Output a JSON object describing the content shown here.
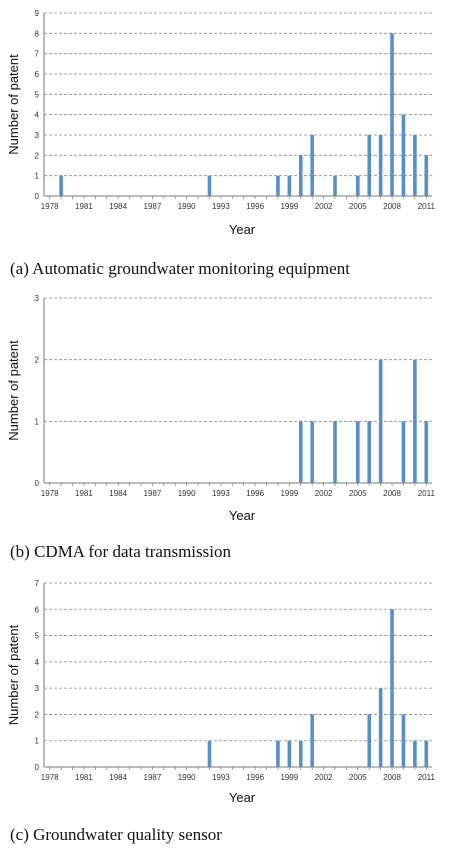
{
  "colors": {
    "bar": "#5b8fc4",
    "grid": "#8a8a8a",
    "axis": "#7a7a7a"
  },
  "chart_data": [
    {
      "type": "bar",
      "caption": "(a) Automatic groundwater monitoring equipment",
      "xlabel": "Year",
      "ylabel": "Number of patent",
      "x_ticks": [
        "1978",
        "1981",
        "1984",
        "1987",
        "1990",
        "1993",
        "1996",
        "1999",
        "2002",
        "2005",
        "2008",
        "2011"
      ],
      "y_ticks": [
        "0",
        "1",
        "2",
        "3",
        "4",
        "5",
        "6",
        "7",
        "8",
        "9"
      ],
      "ylim": [
        0,
        9
      ],
      "grid": "horizontal dashed",
      "x": [
        1979,
        1992,
        1998,
        1999,
        2000,
        2001,
        2003,
        2005,
        2006,
        2007,
        2008,
        2009,
        2010,
        2011
      ],
      "values": [
        1,
        1,
        1,
        1,
        2,
        3,
        1,
        1,
        3,
        3,
        8,
        4,
        3,
        2
      ]
    },
    {
      "type": "bar",
      "caption": "(b) CDMA for data transmission",
      "xlabel": "Year",
      "ylabel": "Number of patent",
      "x_ticks": [
        "1978",
        "1981",
        "1984",
        "1987",
        "1990",
        "1993",
        "1996",
        "1999",
        "2002",
        "2005",
        "2008",
        "2011"
      ],
      "y_ticks": [
        "0",
        "1",
        "2",
        "3"
      ],
      "ylim": [
        0,
        3
      ],
      "grid": "horizontal dashed",
      "x": [
        2000,
        2001,
        2003,
        2005,
        2006,
        2007,
        2009,
        2010,
        2011
      ],
      "values": [
        1,
        1,
        1,
        1,
        1,
        2,
        1,
        2,
        1
      ]
    },
    {
      "type": "bar",
      "caption": "(c) Groundwater quality sensor",
      "xlabel": "Year",
      "ylabel": "Number of patent",
      "x_ticks": [
        "1978",
        "1981",
        "1984",
        "1987",
        "1990",
        "1993",
        "1996",
        "1999",
        "2002",
        "2005",
        "2008",
        "2011"
      ],
      "y_ticks": [
        "0",
        "1",
        "2",
        "3",
        "4",
        "5",
        "6",
        "7"
      ],
      "ylim": [
        0,
        7
      ],
      "grid": "horizontal dashed",
      "x": [
        1992,
        1998,
        1999,
        2000,
        2001,
        2006,
        2007,
        2008,
        2009,
        2010,
        2011
      ],
      "values": [
        1,
        1,
        1,
        1,
        2,
        2,
        3,
        6,
        2,
        1,
        1
      ]
    }
  ]
}
